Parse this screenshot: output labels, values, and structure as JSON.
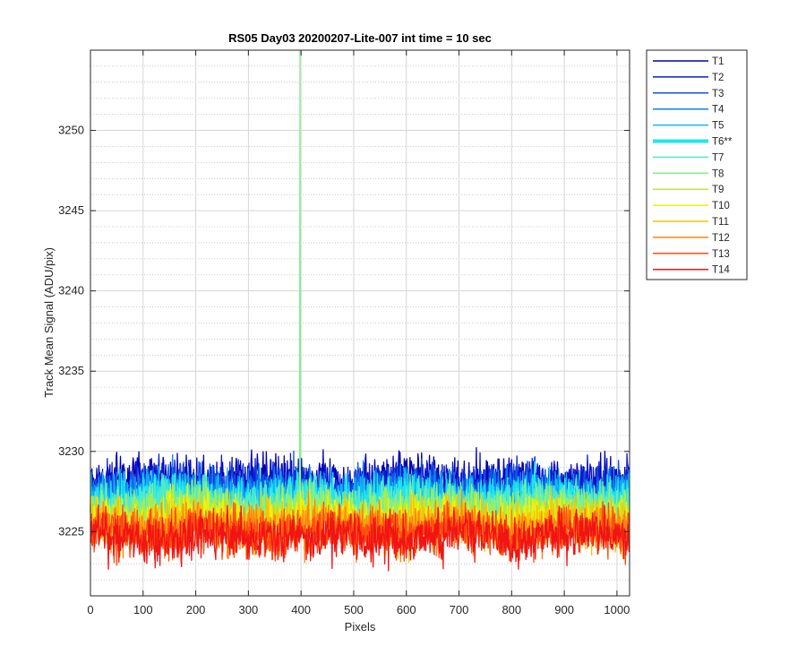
{
  "chart_data": {
    "type": "line",
    "title": "RS05 Day03 20200207-Lite-007 int time = 10 sec",
    "xlabel": "Pixels",
    "ylabel": "Track Mean Signal (ADU/pix)",
    "xlim": [
      0,
      1024
    ],
    "ylim": [
      3221.0,
      3255.0
    ],
    "xticks": [
      0,
      100,
      200,
      300,
      400,
      500,
      600,
      700,
      800,
      900,
      1000
    ],
    "yticks": [
      3225,
      3230,
      3235,
      3240,
      3245,
      3250
    ],
    "grid": true,
    "minor_grid": true,
    "legend_position": "outside-top-right",
    "n_points_per_series": 1024,
    "series": [
      {
        "name": "T1",
        "color": "#0000b4",
        "mean": 3228.2,
        "spread": 1.9,
        "width": 1.5
      },
      {
        "name": "T2",
        "color": "#0a1ed2",
        "mean": 3227.9,
        "spread": 1.9,
        "width": 1.5
      },
      {
        "name": "T3",
        "color": "#1450e6",
        "mean": 3227.6,
        "spread": 1.9,
        "width": 1.5
      },
      {
        "name": "T4",
        "color": "#0a82f0",
        "mean": 3227.4,
        "spread": 1.9,
        "width": 1.5
      },
      {
        "name": "T5",
        "color": "#14b4f5",
        "mean": 3227.2,
        "spread": 1.9,
        "width": 1.5
      },
      {
        "name": "T6**",
        "color": "#1ee6f0",
        "mean": 3227.0,
        "spread": 1.9,
        "width": 4
      },
      {
        "name": "T7",
        "color": "#50ebc8",
        "mean": 3226.7,
        "spread": 1.9,
        "width": 1.5
      },
      {
        "name": "T8",
        "color": "#82f08c",
        "mean": 3226.4,
        "spread": 1.9,
        "width": 1.5,
        "spikes": [
          {
            "x": 398,
            "y": 3255.0
          }
        ]
      },
      {
        "name": "T9",
        "color": "#b4eb3c",
        "mean": 3226.1,
        "spread": 1.9,
        "width": 1.5
      },
      {
        "name": "T10",
        "color": "#f0f00a",
        "mean": 3225.8,
        "spread": 1.9,
        "width": 1.5
      },
      {
        "name": "T11",
        "color": "#f5c30a",
        "mean": 3225.5,
        "spread": 1.9,
        "width": 1.5
      },
      {
        "name": "T12",
        "color": "#ff8214",
        "mean": 3225.2,
        "spread": 1.9,
        "width": 1.5
      },
      {
        "name": "T13",
        "color": "#ff4b0f",
        "mean": 3224.9,
        "spread": 1.9,
        "width": 1.5
      },
      {
        "name": "T14",
        "color": "#f01414",
        "mean": 3224.7,
        "spread": 1.9,
        "width": 1.5
      }
    ]
  }
}
